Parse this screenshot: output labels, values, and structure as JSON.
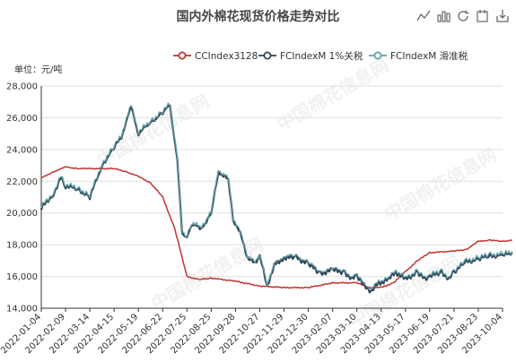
{
  "title": "国内外棉花现货价格走势对比",
  "watermark": "中国棉花信息网",
  "toolbox": [
    {
      "name": "line-switch-icon"
    },
    {
      "name": "bar-switch-icon"
    },
    {
      "name": "refresh-icon"
    },
    {
      "name": "data-view-icon"
    },
    {
      "name": "save-image-icon"
    }
  ],
  "colors": {
    "s1": "#c23531",
    "s2": "#2f4554",
    "s3": "#61a0a8",
    "axis": "#333333",
    "grid": "#e0e0e0",
    "title": "#464646"
  },
  "chart_data": {
    "type": "line",
    "title": "国内外棉花现货价格走势对比",
    "ylabel": "单位：元/吨",
    "ylim": [
      14000,
      28000
    ],
    "yticks": [
      14000,
      16000,
      18000,
      20000,
      22000,
      24000,
      26000,
      28000
    ],
    "ytick_labels": [
      "14,000",
      "16,000",
      "18,000",
      "20,000",
      "22,000",
      "24,000",
      "26,000",
      "28,000"
    ],
    "xtick_labels": [
      "2022-01-04",
      "2022-02-09",
      "2022-03-14",
      "2022-04-15",
      "2022-05-19",
      "2022-06-22",
      "2022-07-25",
      "2022-08-25",
      "2022-09-28",
      "2022-10-27",
      "2022-11-29",
      "2022-12-30",
      "2023-02-07",
      "2023-03-10",
      "2023-04-13",
      "2023-05-17",
      "2023-06-19",
      "2023-07-21",
      "2023-08-23",
      "2023-10-04"
    ],
    "legend_position": "top-right",
    "series": [
      {
        "name": "CCIndex3128",
        "anchors": [
          [
            0,
            22200
          ],
          [
            0.5,
            22600
          ],
          [
            1,
            22900
          ],
          [
            1.5,
            22800
          ],
          [
            2,
            22800
          ],
          [
            3,
            22800
          ],
          [
            3.5,
            22600
          ],
          [
            4,
            22300
          ],
          [
            4.5,
            21900
          ],
          [
            5,
            21000
          ],
          [
            5.5,
            19000
          ],
          [
            6,
            16000
          ],
          [
            6.5,
            15800
          ],
          [
            7,
            15900
          ],
          [
            8,
            15700
          ],
          [
            9,
            15400
          ],
          [
            10,
            15300
          ],
          [
            11,
            15300
          ],
          [
            12,
            15600
          ],
          [
            13,
            15600
          ],
          [
            13.5,
            15300
          ],
          [
            14,
            15300
          ],
          [
            14.5,
            15600
          ],
          [
            15,
            16300
          ],
          [
            15.5,
            17000
          ],
          [
            16,
            17500
          ],
          [
            17,
            17600
          ],
          [
            17.5,
            17700
          ],
          [
            18,
            18200
          ],
          [
            18.5,
            18300
          ],
          [
            19,
            18200
          ],
          [
            19.4,
            18300
          ]
        ]
      },
      {
        "name": "FCIndexM 1%关税",
        "anchors": [
          [
            0,
            20300
          ],
          [
            0.5,
            21200
          ],
          [
            0.8,
            22200
          ],
          [
            1,
            21700
          ],
          [
            1.5,
            21500
          ],
          [
            2,
            21000
          ],
          [
            2.5,
            23000
          ],
          [
            3,
            24100
          ],
          [
            3.3,
            24800
          ],
          [
            3.7,
            26700
          ],
          [
            4,
            25000
          ],
          [
            4.5,
            25700
          ],
          [
            5,
            26300
          ],
          [
            5.3,
            26800
          ],
          [
            5.6,
            23400
          ],
          [
            5.8,
            18800
          ],
          [
            6,
            18400
          ],
          [
            6.2,
            19300
          ],
          [
            6.6,
            19000
          ],
          [
            7,
            20000
          ],
          [
            7.3,
            22600
          ],
          [
            7.7,
            22100
          ],
          [
            7.9,
            19600
          ],
          [
            8.2,
            18700
          ],
          [
            8.5,
            17200
          ],
          [
            8.8,
            16800
          ],
          [
            9,
            17300
          ],
          [
            9.3,
            15400
          ],
          [
            9.6,
            16700
          ],
          [
            10,
            17200
          ],
          [
            10.5,
            17200
          ],
          [
            11,
            16800
          ],
          [
            11.5,
            16200
          ],
          [
            12,
            16400
          ],
          [
            12.5,
            16300
          ],
          [
            12.8,
            15800
          ],
          [
            13,
            16100
          ],
          [
            13.3,
            15400
          ],
          [
            13.6,
            15100
          ],
          [
            13.9,
            15600
          ],
          [
            14.3,
            15800
          ],
          [
            14.6,
            16300
          ],
          [
            15,
            15800
          ],
          [
            15.5,
            16300
          ],
          [
            15.8,
            15800
          ],
          [
            16,
            16000
          ],
          [
            16.5,
            16300
          ],
          [
            16.8,
            15800
          ],
          [
            17,
            16300
          ],
          [
            17.5,
            16900
          ],
          [
            18,
            17100
          ],
          [
            18.5,
            17300
          ],
          [
            19,
            17300
          ],
          [
            19.4,
            17500
          ]
        ]
      },
      {
        "name": "FCIndexM 滑准税",
        "anchors": [
          [
            0,
            20400
          ],
          [
            0.5,
            21300
          ],
          [
            0.8,
            22300
          ],
          [
            1,
            21800
          ],
          [
            1.5,
            21600
          ],
          [
            2,
            21100
          ],
          [
            2.5,
            23100
          ],
          [
            3,
            24200
          ],
          [
            3.3,
            24900
          ],
          [
            3.7,
            26800
          ],
          [
            4,
            25100
          ],
          [
            4.5,
            25800
          ],
          [
            5,
            26400
          ],
          [
            5.3,
            26900
          ],
          [
            5.6,
            23500
          ],
          [
            5.8,
            18900
          ],
          [
            6,
            18500
          ],
          [
            6.2,
            19400
          ],
          [
            6.6,
            19100
          ],
          [
            7,
            20100
          ],
          [
            7.3,
            22700
          ],
          [
            7.7,
            22200
          ],
          [
            7.9,
            19700
          ],
          [
            8.2,
            18800
          ],
          [
            8.5,
            17300
          ],
          [
            8.8,
            16900
          ],
          [
            9,
            17400
          ],
          [
            9.3,
            15500
          ],
          [
            9.6,
            16800
          ],
          [
            10,
            17300
          ],
          [
            10.5,
            17300
          ],
          [
            11,
            16900
          ],
          [
            11.5,
            16300
          ],
          [
            12,
            16500
          ],
          [
            12.5,
            16400
          ],
          [
            12.8,
            15900
          ],
          [
            13,
            16200
          ],
          [
            13.3,
            15500
          ],
          [
            13.6,
            15200
          ],
          [
            13.9,
            15700
          ],
          [
            14.3,
            15900
          ],
          [
            14.6,
            16400
          ],
          [
            15,
            15900
          ],
          [
            15.5,
            16400
          ],
          [
            15.8,
            15900
          ],
          [
            16,
            16100
          ],
          [
            16.5,
            16400
          ],
          [
            16.8,
            15900
          ],
          [
            17,
            16400
          ],
          [
            17.5,
            17000
          ],
          [
            18,
            17200
          ],
          [
            18.5,
            17400
          ],
          [
            19,
            17400
          ],
          [
            19.4,
            17600
          ]
        ]
      }
    ]
  }
}
